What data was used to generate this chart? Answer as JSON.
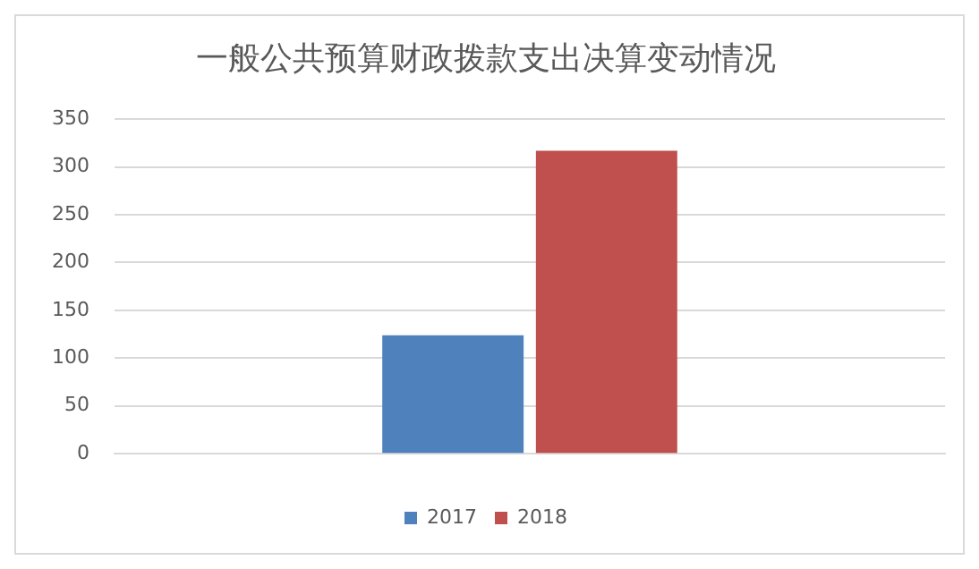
{
  "chart_data": {
    "type": "bar",
    "title": "一般公共预算财政拨款支出决算变动情况",
    "categories": [
      null
    ],
    "series": [
      {
        "name": "2017",
        "color": "#4f81bd",
        "values": [
          124
        ]
      },
      {
        "name": "2018",
        "color": "#c0504d",
        "values": [
          317
        ]
      }
    ],
    "ylim": [
      0,
      350
    ],
    "yticks": [
      0,
      50,
      100,
      150,
      200,
      250,
      300,
      350
    ],
    "grid": "y",
    "legend": "bottom"
  }
}
